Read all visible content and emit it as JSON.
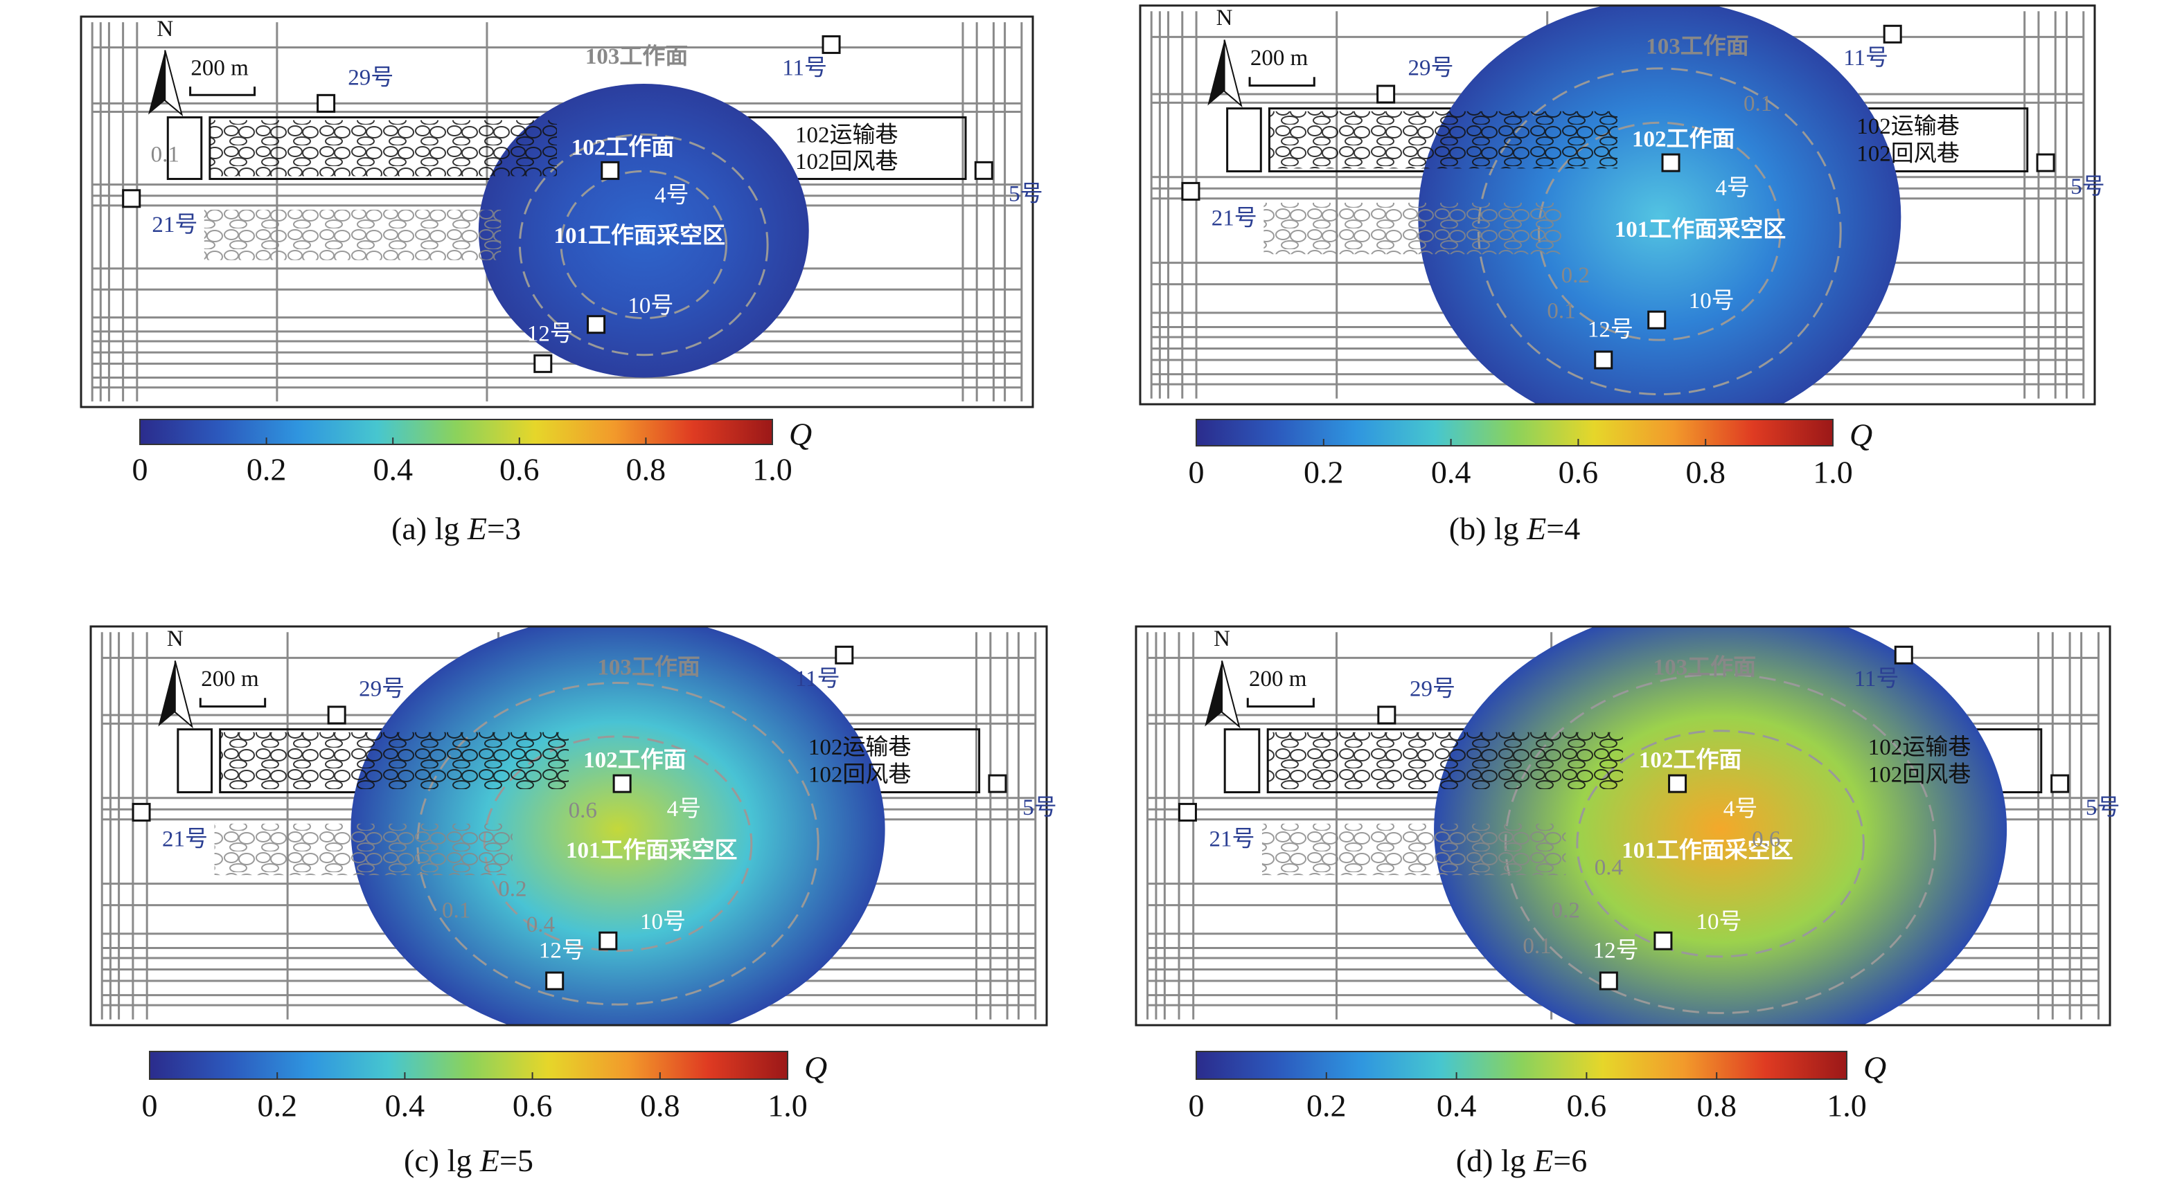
{
  "colormap": [
    "#2b2c8c",
    "#2c59bd",
    "#2f95df",
    "#47c6cf",
    "#8bd25c",
    "#e6d62a",
    "#f29a2b",
    "#df3b22",
    "#9b1818"
  ],
  "panels": [
    {
      "caption": [
        "(a) lg ",
        "E",
        "=3"
      ],
      "map_labels": [
        "N",
        "200 m",
        "103工作面",
        "11号",
        "29号",
        "102工作面",
        "102运输巷",
        "102回风巷",
        "5号",
        "4号",
        "21号",
        "101工作面采空区",
        "10号",
        "12号"
      ],
      "contour_labels": [
        "0.1"
      ],
      "colorbar": {
        "label": "Q",
        "ticks": [
          0,
          0.2,
          0.4,
          0.6,
          0.8,
          {
            "value": 1,
            "label": "1.0"
          }
        ]
      }
    },
    {
      "caption": [
        "(b) lg ",
        "E",
        "=4"
      ],
      "map_labels": [
        "N",
        "200 m",
        "103工作面",
        "11号",
        "29号",
        "102工作面",
        "102运输巷",
        "102回风巷",
        "5号",
        "4号",
        "21号",
        "101工作面采空区",
        "10号",
        "12号"
      ],
      "contour_labels": [
        "0.1",
        "0.2",
        "0.1"
      ],
      "colorbar": {
        "label": "Q",
        "ticks": [
          0,
          0.2,
          0.4,
          0.6,
          0.8,
          {
            "value": 1,
            "label": "1.0"
          }
        ]
      }
    },
    {
      "caption": [
        "(c) lg ",
        "E",
        "=5"
      ],
      "map_labels": [
        "N",
        "200 m",
        "103工作面",
        "11号",
        "29号",
        "102工作面",
        "102运输巷",
        "102回风巷",
        "5号",
        "4号",
        "21号",
        "101工作面采空区",
        "10号",
        "12号"
      ],
      "contour_labels": [
        "0.1",
        "0.2",
        "0.4",
        "0.6"
      ],
      "colorbar": {
        "label": "Q",
        "ticks": [
          0,
          0.2,
          0.4,
          0.6,
          0.8,
          {
            "value": 1,
            "label": "1.0"
          }
        ]
      }
    },
    {
      "caption": [
        "(d) lg ",
        "E",
        "=6"
      ],
      "map_labels": [
        "N",
        "200 m",
        "103工作面",
        "11号",
        "29号",
        "102工作面",
        "102运输巷",
        "102回风巷",
        "5号",
        "4号",
        "21号",
        "101工作面采空区",
        "10号",
        "12号"
      ],
      "contour_labels": [
        "0.1",
        "0.2",
        "0.4",
        "0.6"
      ],
      "colorbar": {
        "label": "Q",
        "ticks": [
          0,
          0.2,
          0.4,
          0.6,
          0.8,
          {
            "value": 1,
            "label": "1.0"
          }
        ]
      }
    }
  ]
}
